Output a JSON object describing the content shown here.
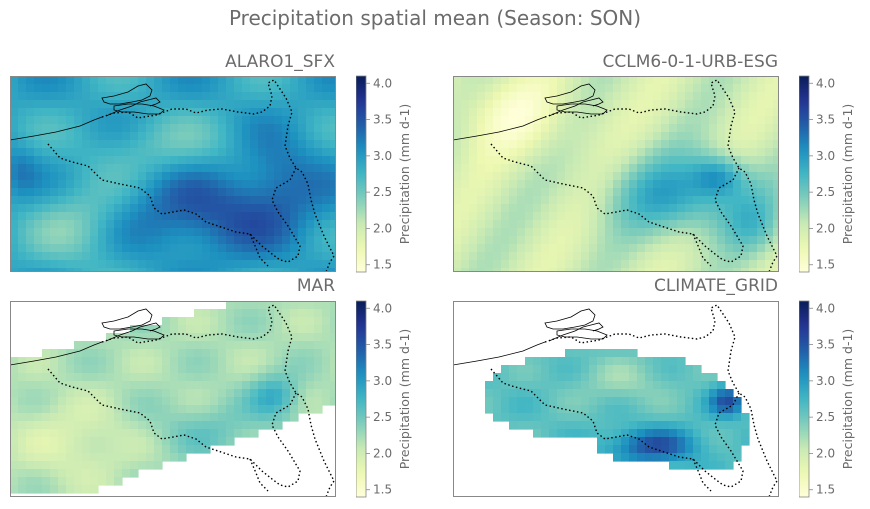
{
  "suptitle": "Precipitation spatial mean (Season: SON)",
  "colorbar": {
    "label": "Precipitation (mm d-1)",
    "ticks": [
      "1.5",
      "2.0",
      "2.5",
      "3.0",
      "3.5",
      "4.0"
    ],
    "vmin": 1.4,
    "vmax": 4.1,
    "colormap": "YlGnBu"
  },
  "panels": [
    {
      "title": "ALARO1_SFX",
      "coverage": "full",
      "style": "smooth"
    },
    {
      "title": "CCLM6-0-1-URB-ESG",
      "coverage": "full",
      "style": "smooth"
    },
    {
      "title": "MAR",
      "coverage": "tilted-swath",
      "style": "smooth"
    },
    {
      "title": "CLIMATE_GRID",
      "coverage": "belgium-only",
      "style": "smooth"
    }
  ],
  "colors": {
    "text": "#6b6b6b",
    "frame": "#888888",
    "coastline": "#000000"
  }
}
